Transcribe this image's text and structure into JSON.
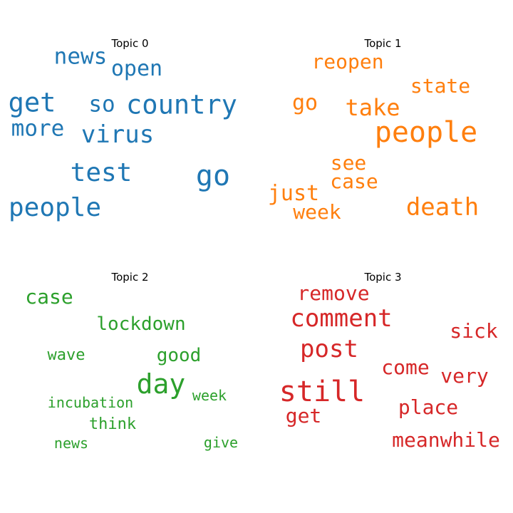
{
  "topics": [
    {
      "title": "Topic 0",
      "color": "#1f77b4",
      "words": [
        "news",
        "open",
        "get",
        "so",
        "country",
        "more",
        "virus",
        "test",
        "go",
        "people"
      ]
    },
    {
      "title": "Topic 1",
      "color": "#ff7f0e",
      "words": [
        "reopen",
        "state",
        "go",
        "take",
        "people",
        "see",
        "case",
        "just",
        "week",
        "death"
      ]
    },
    {
      "title": "Topic 2",
      "color": "#2ca02c",
      "words": [
        "case",
        "lockdown",
        "wave",
        "good",
        "day",
        "week",
        "incubation",
        "think",
        "news",
        "give"
      ]
    },
    {
      "title": "Topic 3",
      "color": "#d62728",
      "words": [
        "remove",
        "comment",
        "sick",
        "post",
        "come",
        "very",
        "still",
        "place",
        "get",
        "meanwhile"
      ]
    }
  ]
}
